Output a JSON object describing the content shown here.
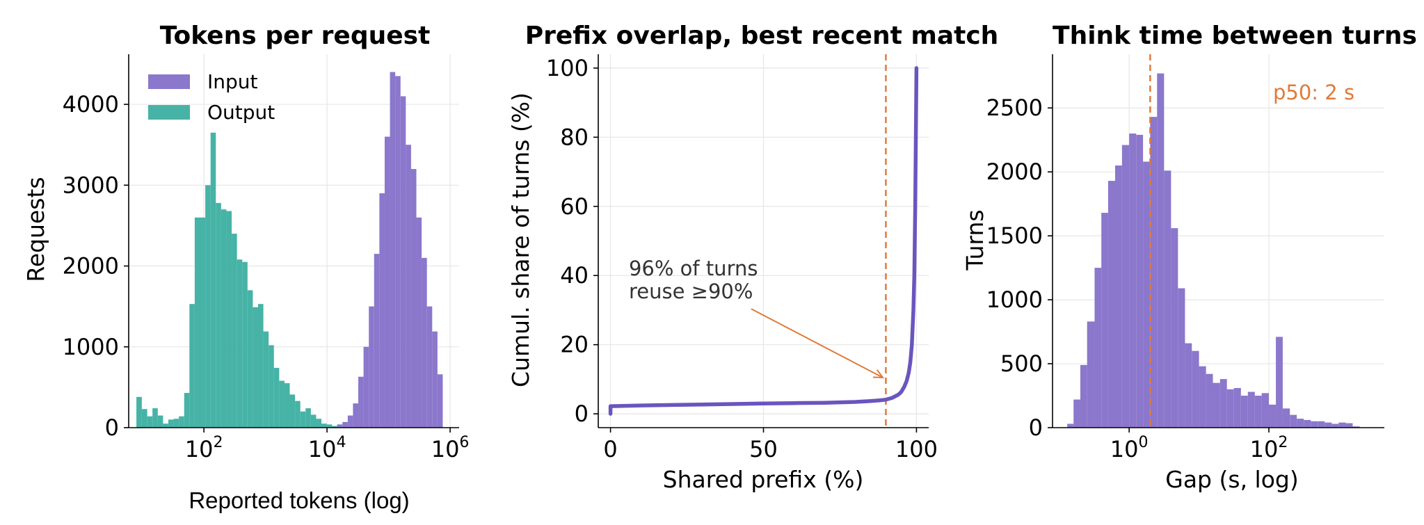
{
  "colors": {
    "input": "#8b77cc",
    "output": "#46b3a6",
    "overlap": "#3f8aa0",
    "line": "#6a55bf",
    "marker": "#e07a3a"
  },
  "chart_data": [
    {
      "type": "bar",
      "title": "Tokens per request",
      "xlabel": "Reported tokens (log)",
      "ylabel": "Requests",
      "xscale": "log",
      "xlim": [
        6,
        1400000
      ],
      "ylim": [
        0,
        4620
      ],
      "xticks": [
        {
          "v": 100,
          "label": "10^2"
        },
        {
          "v": 10000,
          "label": "10^4"
        },
        {
          "v": 1000000,
          "label": "10^6"
        }
      ],
      "yticks": [
        0,
        1000,
        2000,
        3000,
        4000
      ],
      "legend": "top-left",
      "series": [
        {
          "name": "Input",
          "bin_edges": [
            12000,
            14600,
            17800,
            21700,
            26400,
            32200,
            39200,
            47800,
            58200,
            70900,
            86400,
            105300,
            128300,
            156300,
            190400,
            232000,
            282700,
            344400,
            419600,
            511200,
            622800,
            758800,
            924500
          ],
          "values": [
            20,
            40,
            70,
            150,
            300,
            630,
            1000,
            1500,
            2150,
            2900,
            3600,
            4400,
            4350,
            4100,
            3500,
            3200,
            2600,
            2100,
            1500,
            1190,
            660,
            0
          ]
        },
        {
          "name": "Output",
          "bin_edges": [
            8,
            9.8,
            12,
            14.6,
            17.8,
            21.7,
            26.4,
            32.2,
            39.2,
            47.8,
            58.2,
            70.9,
            86.4,
            105.3,
            128.3,
            156.3,
            190.4,
            232,
            282.7,
            344.4,
            419.6,
            511.2,
            622.8,
            758.8,
            924.5,
            1126,
            1372,
            1672,
            2037,
            2481,
            3023,
            3683,
            4487,
            5466,
            6660,
            8114,
            9885,
            12043,
            14673,
            17876,
            21779
          ],
          "values": [
            380,
            230,
            140,
            240,
            150,
            50,
            100,
            110,
            140,
            430,
            1530,
            2600,
            2600,
            3000,
            3650,
            2780,
            2700,
            2680,
            2400,
            2080,
            2050,
            1700,
            1490,
            1530,
            1190,
            1020,
            740,
            580,
            550,
            410,
            330,
            200,
            240,
            160,
            110,
            50,
            40,
            20,
            10,
            0
          ]
        }
      ]
    },
    {
      "type": "line",
      "title": "Prefix overlap, best recent match",
      "xlabel": "Shared prefix (%)",
      "ylabel": "Cumul. share of turns (%)",
      "xlim": [
        -4,
        104
      ],
      "ylim": [
        -4,
        104
      ],
      "xticks": [
        0,
        50,
        100
      ],
      "yticks": [
        0,
        20,
        40,
        60,
        80,
        100
      ],
      "series": [
        {
          "x": [
            0,
            0,
            10,
            20,
            30,
            40,
            50,
            60,
            70,
            80,
            85,
            88,
            90,
            92,
            94,
            95,
            96,
            96.8,
            97.5,
            98,
            98.5,
            99,
            99.3,
            99.6,
            99.8,
            100
          ],
          "y": [
            0,
            2.2,
            2.4,
            2.55,
            2.7,
            2.85,
            3,
            3.1,
            3.2,
            3.45,
            3.7,
            3.9,
            4.1,
            4.6,
            5.5,
            6.3,
            7.8,
            9.5,
            12,
            15,
            20,
            30,
            40,
            60,
            80,
            100
          ]
        }
      ],
      "vline_x": 90,
      "annotation": {
        "text_lines": [
          "96% of turns",
          "reuse ≥90%"
        ],
        "point_x": 89,
        "point_y": 10.5,
        "text_x": 6,
        "text_y": 40
      }
    },
    {
      "type": "bar",
      "title": "Think time between turns",
      "xlabel": "Gap (s, log)",
      "ylabel": "Turns",
      "xscale": "log",
      "xlim": [
        0.08,
        4500
      ],
      "ylim": [
        0,
        2920
      ],
      "xticks": [
        {
          "v": 1,
          "label": "10^0"
        },
        {
          "v": 100,
          "label": "10^2"
        }
      ],
      "yticks": [
        0,
        500,
        1000,
        1500,
        2000,
        2500
      ],
      "vline_x": 2,
      "vline_label": "p50: 2 s",
      "series": [
        {
          "bin_edges": [
            0.13,
            0.16,
            0.2,
            0.25,
            0.32,
            0.4,
            0.5,
            0.63,
            0.79,
            1,
            1.26,
            1.58,
            2,
            2.51,
            3.16,
            3.98,
            5,
            6.3,
            7.9,
            10,
            12.6,
            15.8,
            20,
            25.1,
            31.6,
            39.8,
            50,
            63,
            79,
            100,
            126,
            158,
            200,
            251,
            316,
            398,
            501,
            631,
            794,
            1000,
            1259,
            1585,
            1995,
            2512
          ],
          "values": [
            30,
            220,
            490,
            830,
            1250,
            1680,
            1930,
            2050,
            2210,
            2300,
            2290,
            2080,
            2430,
            2770,
            2010,
            1560,
            1090,
            660,
            600,
            480,
            420,
            350,
            380,
            300,
            310,
            250,
            280,
            250,
            270,
            180,
            710,
            150,
            100,
            70,
            60,
            50,
            50,
            40,
            30,
            40,
            35,
            10,
            0
          ],
          "bin_edges_note": ""
        }
      ]
    }
  ]
}
